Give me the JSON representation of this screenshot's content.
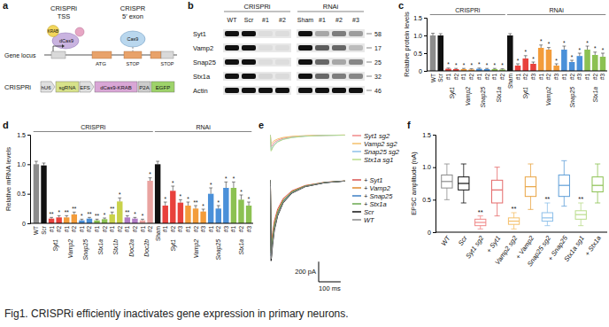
{
  "diagram": {
    "panel": "a",
    "crispri_label": "CRISPRi",
    "crispri_site": "TSS",
    "crispri_complex": [
      "KRAB",
      "dCas9"
    ],
    "crispr_label": "CRISPR",
    "crispr_site": "5′ exon",
    "crispr_complex": [
      "Cas9"
    ],
    "locus_label": "Gene locus",
    "atg": "ATG",
    "stop_inline": "STOP",
    "stop_codon": "STOP",
    "construct_label": "CRISPRi",
    "construct": [
      "hU6",
      "sgRNA",
      "EFS",
      "dCas9-KRAB",
      "P2A",
      "EGFP"
    ]
  },
  "blot": {
    "panel": "b",
    "groups": [
      {
        "label": "CRISPRi",
        "lanes": [
          "WT",
          "Scr",
          "#1",
          "#2"
        ]
      },
      {
        "label": "RNAi",
        "lanes": [
          "Sham",
          "#1",
          "#2",
          "#3"
        ]
      }
    ],
    "rows": [
      {
        "protein": "Syt1",
        "mw": 58,
        "intensity": [
          1,
          1,
          0.05,
          0.05,
          1,
          0.3,
          0.5,
          0.35
        ]
      },
      {
        "protein": "Vamp2",
        "mw": 17,
        "intensity": [
          1,
          1,
          0.05,
          0.05,
          1,
          0.65,
          0.6,
          0.2
        ]
      },
      {
        "protein": "Snap25",
        "mw": 25,
        "intensity": [
          1,
          1,
          0.05,
          0.05,
          1,
          0.6,
          0.3,
          0.45
        ]
      },
      {
        "protein": "Stx1a",
        "mw": 32,
        "intensity": [
          1,
          1,
          0.08,
          0.06,
          1,
          0.6,
          0.5,
          0.45
        ]
      },
      {
        "protein": "Actin",
        "mw": 46,
        "intensity": [
          1,
          1,
          1,
          1,
          1,
          1,
          1,
          1
        ]
      }
    ]
  },
  "chart_data": [
    {
      "panel": "c",
      "type": "bar",
      "y_label": "Relative protein levels",
      "ylim": [
        0,
        1.5
      ],
      "yticks": [
        0,
        0.5,
        {
          "value": 1,
          "label": "1.0"
        },
        1.5
      ],
      "categories": [
        "WT",
        "Scr",
        "#1",
        "#2",
        "#1",
        "#2",
        "#1",
        "#2",
        "#1",
        "#2",
        "Sham",
        "#1",
        "#2",
        "#3",
        "#1",
        "#2",
        "#3",
        "#1",
        "#2",
        "#3",
        "#1",
        "#2",
        "#3"
      ],
      "values": [
        1,
        1,
        0.06,
        0.05,
        0.05,
        0.04,
        0.06,
        0.05,
        0.05,
        0.04,
        1,
        0.15,
        0.35,
        0.2,
        0.65,
        0.6,
        0.15,
        0.6,
        0.25,
        0.42,
        0.6,
        0.45,
        0.4
      ],
      "errors": [
        0.06,
        0.05,
        0.02,
        0.02,
        0.02,
        0.02,
        0.02,
        0.02,
        0.02,
        0.02,
        0.05,
        0.05,
        0.08,
        0.05,
        0.08,
        0.06,
        0.05,
        0.1,
        0.05,
        0.08,
        0.1,
        0.08,
        0.1
      ],
      "colors": [
        "#8c8c8c",
        "#111111",
        "#e8413c",
        "#e8413c",
        "#f39c3a",
        "#f39c3a",
        "#4a90d9",
        "#4a90d9",
        "#8cc152",
        "#8cc152",
        "#111111",
        "#e8413c",
        "#e8413c",
        "#e8413c",
        "#f39c3a",
        "#f39c3a",
        "#f39c3a",
        "#4a90d9",
        "#4a90d9",
        "#4a90d9",
        "#8cc152",
        "#8cc152",
        "#8cc152"
      ],
      "annotations": [
        null,
        null,
        "*",
        "*",
        "*",
        "*",
        "*",
        "*",
        "*",
        "*",
        null,
        "*",
        "*",
        "*",
        "*",
        "*",
        "*",
        "*",
        "*",
        "*",
        "*",
        "*",
        "*"
      ],
      "groups": [
        {
          "label": "Syt1",
          "indices": [
            2,
            3
          ]
        },
        {
          "label": "Vamp2",
          "indices": [
            4,
            5
          ]
        },
        {
          "label": "Snap25",
          "indices": [
            6,
            7
          ]
        },
        {
          "label": "Stx1a",
          "indices": [
            8,
            9
          ]
        },
        {
          "label": "Syt1",
          "indices": [
            11,
            12,
            13
          ]
        },
        {
          "label": "Vamp2",
          "indices": [
            14,
            15,
            16
          ]
        },
        {
          "label": "Snap25",
          "indices": [
            17,
            18,
            19
          ]
        },
        {
          "label": "Stx1a",
          "indices": [
            20,
            21,
            22
          ]
        }
      ],
      "sections": [
        {
          "label": "CRISPRi",
          "indices": [
            0,
            9
          ]
        },
        {
          "label": "RNAi",
          "indices": [
            10,
            22
          ]
        }
      ]
    },
    {
      "panel": "d",
      "type": "bar",
      "y_label": "Relative mRNA levels",
      "ylim": [
        0,
        1.5
      ],
      "yticks": [
        0,
        0.5,
        {
          "value": 1,
          "label": "1.0"
        },
        1.5
      ],
      "categories": [
        "WT",
        "Scr",
        "#1",
        "#2",
        "#1",
        "#2",
        "#1",
        "#2",
        "#1",
        "#2",
        "#1",
        "#2",
        "#1",
        "#2",
        "#1",
        "#2",
        "Sham",
        "#1",
        "#2",
        "#3",
        "#1",
        "#2",
        "#3",
        "#1",
        "#2",
        "#3",
        "#1",
        "#2",
        "#3"
      ],
      "values": [
        1,
        0.98,
        0.08,
        0.1,
        0.1,
        0.15,
        0.05,
        0.08,
        0.05,
        0.07,
        0.15,
        0.37,
        0.1,
        0.08,
        0.05,
        0.72,
        1,
        0.3,
        0.55,
        0.35,
        0.3,
        0.25,
        0.2,
        0.5,
        0.25,
        0.6,
        0.6,
        0.4,
        0.3
      ],
      "errors": [
        0.05,
        0.04,
        0.02,
        0.03,
        0.03,
        0.04,
        0.02,
        0.02,
        0.02,
        0.02,
        0.04,
        0.06,
        0.03,
        0.02,
        0.02,
        0.05,
        0.05,
        0.06,
        0.08,
        0.05,
        0.06,
        0.05,
        0.04,
        0.1,
        0.05,
        0.1,
        0.1,
        0.08,
        0.06
      ],
      "colors": [
        "#8c8c8c",
        "#111111",
        "#e8413c",
        "#e8413c",
        "#f39c3a",
        "#f39c3a",
        "#4a90d9",
        "#4a90d9",
        "#8cc152",
        "#8cc152",
        "#c9d24a",
        "#c9d24a",
        "#b07cc6",
        "#b07cc6",
        "#e9a3a0",
        "#e9a3a0",
        "#111111",
        "#e8413c",
        "#e8413c",
        "#e8413c",
        "#f39c3a",
        "#f39c3a",
        "#f39c3a",
        "#4a90d9",
        "#4a90d9",
        "#4a90d9",
        "#8cc152",
        "#8cc152",
        "#8cc152"
      ],
      "annotations": [
        null,
        null,
        "**",
        "*",
        "**",
        "**",
        "*",
        "**",
        "**",
        "*",
        "**",
        "*",
        "**",
        "*",
        "*",
        "*",
        null,
        "*",
        "*",
        "*",
        "*",
        "**",
        "*",
        "*",
        "*",
        "*",
        "*",
        "*",
        "*"
      ],
      "groups": [
        {
          "label": "Syt1",
          "indices": [
            2,
            3
          ]
        },
        {
          "label": "Vamp2",
          "indices": [
            4,
            5
          ]
        },
        {
          "label": "Snap25",
          "indices": [
            6,
            7
          ]
        },
        {
          "label": "Stx1a",
          "indices": [
            8,
            9
          ]
        },
        {
          "label": "Stx1b",
          "indices": [
            10,
            11
          ]
        },
        {
          "label": "Doc2a",
          "indices": [
            12,
            13
          ]
        },
        {
          "label": "Doc2b",
          "indices": [
            14,
            15
          ]
        },
        {
          "label": "Syt1",
          "indices": [
            17,
            18,
            19
          ]
        },
        {
          "label": "Vamp2",
          "indices": [
            20,
            21,
            22
          ]
        },
        {
          "label": "Snap25",
          "indices": [
            23,
            24,
            25
          ]
        },
        {
          "label": "Stx1a",
          "indices": [
            26,
            27,
            28
          ]
        }
      ],
      "sections": [
        {
          "label": "CRISPRi",
          "indices": [
            0,
            15
          ]
        },
        {
          "label": "RNAi",
          "indices": [
            16,
            28
          ]
        }
      ]
    },
    {
      "panel": "e",
      "type": "line",
      "tick_labels": false,
      "x": [
        0,
        2,
        5,
        8,
        12,
        20,
        35,
        60,
        100,
        160,
        250,
        340
      ],
      "xlim": [
        0,
        350
      ],
      "subplots": [
        {
          "ylim": [
            -200,
            20
          ],
          "series": [
            {
              "name": "Syt1 sg2",
              "color": "#f08a8a",
              "values": [
                0,
                -8,
                -120,
                -112,
                -96,
                -74,
                -53,
                -34,
                -19,
                -10,
                -4,
                -1
              ]
            },
            {
              "name": "Vamp2 sg2",
              "color": "#f5c06b",
              "values": [
                0,
                -6,
                -90,
                -84,
                -72,
                -56,
                -40,
                -25,
                -14,
                -7,
                -3,
                -1
              ]
            },
            {
              "name": "Snap25 sg2",
              "color": "#8ec0ea",
              "values": [
                0,
                -10,
                -150,
                -140,
                -120,
                -93,
                -66,
                -42,
                -24,
                -12,
                -5,
                -2
              ]
            },
            {
              "name": "Stx1a sg1",
              "color": "#b9dc8a",
              "values": [
                0,
                -11,
                -160,
                -149,
                -128,
                -99,
                -70,
                -45,
                -26,
                -13,
                -5,
                -2
              ]
            }
          ]
        },
        {
          "ylim": [
            -850,
            30
          ],
          "series": [
            {
              "name": "+ Syt1",
              "color": "#d9534f",
              "values": [
                0,
                -46,
                -650,
                -605,
                -520,
                -403,
                -286,
                -182,
                -104,
                -52,
                -20,
                -7
              ]
            },
            {
              "name": "+ Vamp2",
              "color": "#e08a2e",
              "values": [
                0,
                -49,
                -700,
                -651,
                -560,
                -434,
                -308,
                -196,
                -112,
                -56,
                -21,
                -7
              ]
            },
            {
              "name": "+ Snap25",
              "color": "#3d7fc4",
              "values": [
                0,
                -53,
                -750,
                -698,
                -600,
                -465,
                -330,
                -210,
                -120,
                -60,
                -23,
                -8
              ]
            },
            {
              "name": "+ Stx1a",
              "color": "#6aa84f",
              "values": [
                0,
                -50,
                -720,
                -670,
                -576,
                -446,
                -317,
                -202,
                -115,
                -58,
                -22,
                -7
              ]
            },
            {
              "name": "Scr",
              "color": "#111111",
              "values": [
                0,
                -56,
                -800,
                -744,
                -640,
                -496,
                -352,
                -224,
                -128,
                -64,
                -24,
                -8
              ]
            },
            {
              "name": "WT",
              "color": "#888888",
              "values": [
                0,
                -55,
                -780,
                -725,
                -624,
                -484,
                -343,
                -218,
                -125,
                -62,
                -23,
                -8
              ]
            }
          ]
        }
      ],
      "scale_bar": {
        "y": 200,
        "y_label": "200 pA",
        "x": 100,
        "x_label": "100 ms"
      }
    },
    {
      "panel": "f",
      "type": "box",
      "y_label": "EPSC amplitude (nA)",
      "ylim": [
        0,
        1.5
      ],
      "yticks": [
        0,
        0.5,
        {
          "value": 1,
          "label": "1.0"
        },
        1.5
      ],
      "categories": [
        "WT",
        "Scr",
        "Syt1 sg2",
        "+ Syt1",
        "Vamp2 sg2",
        "+ Vamp2",
        "Snap25 sg2",
        "+ Snap25",
        "Stx1a sg1",
        "+ Stx1a"
      ],
      "whisker_low": [
        0.5,
        0.45,
        0.05,
        0.25,
        0.05,
        0.35,
        0.1,
        0.4,
        0.1,
        0.45
      ],
      "q1": [
        0.68,
        0.65,
        0.1,
        0.45,
        0.12,
        0.55,
        0.17,
        0.55,
        0.2,
        0.62
      ],
      "median": [
        0.78,
        0.75,
        0.15,
        0.65,
        0.17,
        0.7,
        0.22,
        0.72,
        0.27,
        0.72
      ],
      "q3": [
        0.88,
        0.85,
        0.2,
        0.8,
        0.22,
        0.85,
        0.3,
        0.88,
        0.33,
        0.85
      ],
      "whisker_high": [
        1.05,
        1.05,
        0.25,
        1,
        0.3,
        1.05,
        0.45,
        1.1,
        0.45,
        1.05
      ],
      "colors": [
        "#8c8c8c",
        "#111111",
        "#f08a8a",
        "#e46a6a",
        "#f5c06b",
        "#e9a443",
        "#8ec0ea",
        "#5f9fd8",
        "#b9dc8a",
        "#8cc152"
      ],
      "annotations": [
        null,
        null,
        "**",
        null,
        "**",
        null,
        "**",
        null,
        "**",
        null
      ]
    }
  ],
  "caption": "Fig1. CRISPRi efficiently inactivates gene expression in primary neurons."
}
